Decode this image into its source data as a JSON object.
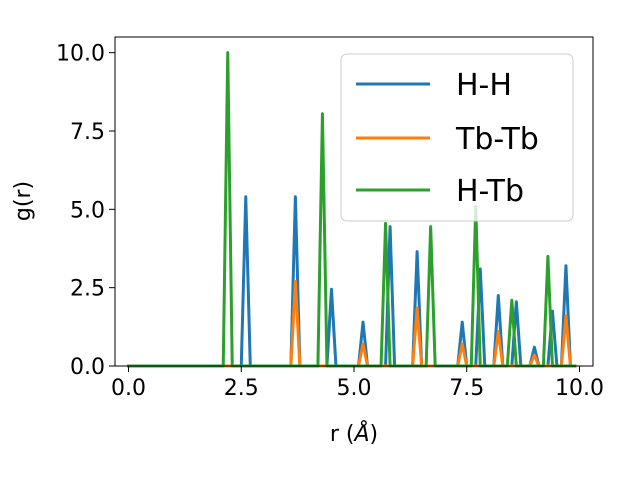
{
  "chart_data": {
    "type": "line",
    "xlabel_main": "r (",
    "xlabel_unit": "Å",
    "xlabel_close": ")",
    "ylabel": "g(r)",
    "xlim": [
      -0.3,
      10.3
    ],
    "ylim": [
      0,
      10.5
    ],
    "xticks": [
      0.0,
      2.5,
      5.0,
      7.5,
      10.0
    ],
    "xtick_labels": [
      "0.0",
      "2.5",
      "5.0",
      "7.5",
      "10.0"
    ],
    "yticks": [
      0.0,
      2.5,
      5.0,
      7.5,
      10.0
    ],
    "ytick_labels": [
      "0.0",
      "2.5",
      "5.0",
      "7.5",
      "10.0"
    ],
    "grid": false,
    "legend_position": "upper right",
    "series": [
      {
        "name": "H-H",
        "color": "#1f77b4",
        "x": [
          0.0,
          2.5,
          2.6,
          2.7,
          3.6,
          3.7,
          3.8,
          4.4,
          4.5,
          4.6,
          5.1,
          5.2,
          5.3,
          5.7,
          5.8,
          5.9,
          6.3,
          6.4,
          6.5,
          7.3,
          7.4,
          7.5,
          7.7,
          7.8,
          7.9,
          8.1,
          8.2,
          8.3,
          8.5,
          8.6,
          8.7,
          8.9,
          9.0,
          9.1,
          9.3,
          9.4,
          9.5,
          9.6,
          9.7,
          9.8,
          9.9
        ],
        "y": [
          0.0,
          0.0,
          5.4,
          0.0,
          0.0,
          5.4,
          0.0,
          0.0,
          2.45,
          0.0,
          0.0,
          1.4,
          0.0,
          0.0,
          4.45,
          0.0,
          0.0,
          3.65,
          0.0,
          0.0,
          1.4,
          0.0,
          0.0,
          3.1,
          0.0,
          0.0,
          2.25,
          0.0,
          0.0,
          2.05,
          0.0,
          0.0,
          0.6,
          0.0,
          0.0,
          1.75,
          0.0,
          0.0,
          3.2,
          0.0,
          0.0
        ]
      },
      {
        "name": "Tb-Tb",
        "color": "#ff7f0e",
        "x": [
          0.0,
          3.6,
          3.7,
          3.8,
          5.1,
          5.2,
          5.3,
          6.3,
          6.4,
          6.5,
          7.3,
          7.4,
          7.5,
          8.1,
          8.2,
          8.3,
          8.9,
          9.0,
          9.1,
          9.6,
          9.7,
          9.8,
          9.9
        ],
        "y": [
          0.0,
          0.0,
          2.7,
          0.0,
          0.0,
          0.7,
          0.0,
          0.0,
          1.85,
          0.0,
          0.0,
          0.7,
          0.0,
          0.0,
          1.1,
          0.0,
          0.0,
          0.35,
          0.0,
          0.0,
          1.6,
          0.0,
          0.0
        ]
      },
      {
        "name": "H-Tb",
        "color": "#2ca02c",
        "x": [
          0.0,
          2.1,
          2.2,
          2.3,
          4.2,
          4.3,
          4.4,
          5.6,
          5.7,
          5.8,
          6.6,
          6.7,
          6.8,
          7.6,
          7.7,
          7.8,
          8.4,
          8.5,
          8.6,
          9.2,
          9.3,
          9.4,
          9.9
        ],
        "y": [
          0.0,
          0.0,
          10.0,
          0.0,
          0.0,
          8.05,
          0.0,
          0.0,
          4.55,
          0.0,
          0.0,
          4.45,
          0.0,
          0.0,
          5.1,
          0.0,
          0.0,
          2.1,
          0.0,
          0.0,
          3.5,
          0.0,
          0.0
        ]
      }
    ]
  }
}
